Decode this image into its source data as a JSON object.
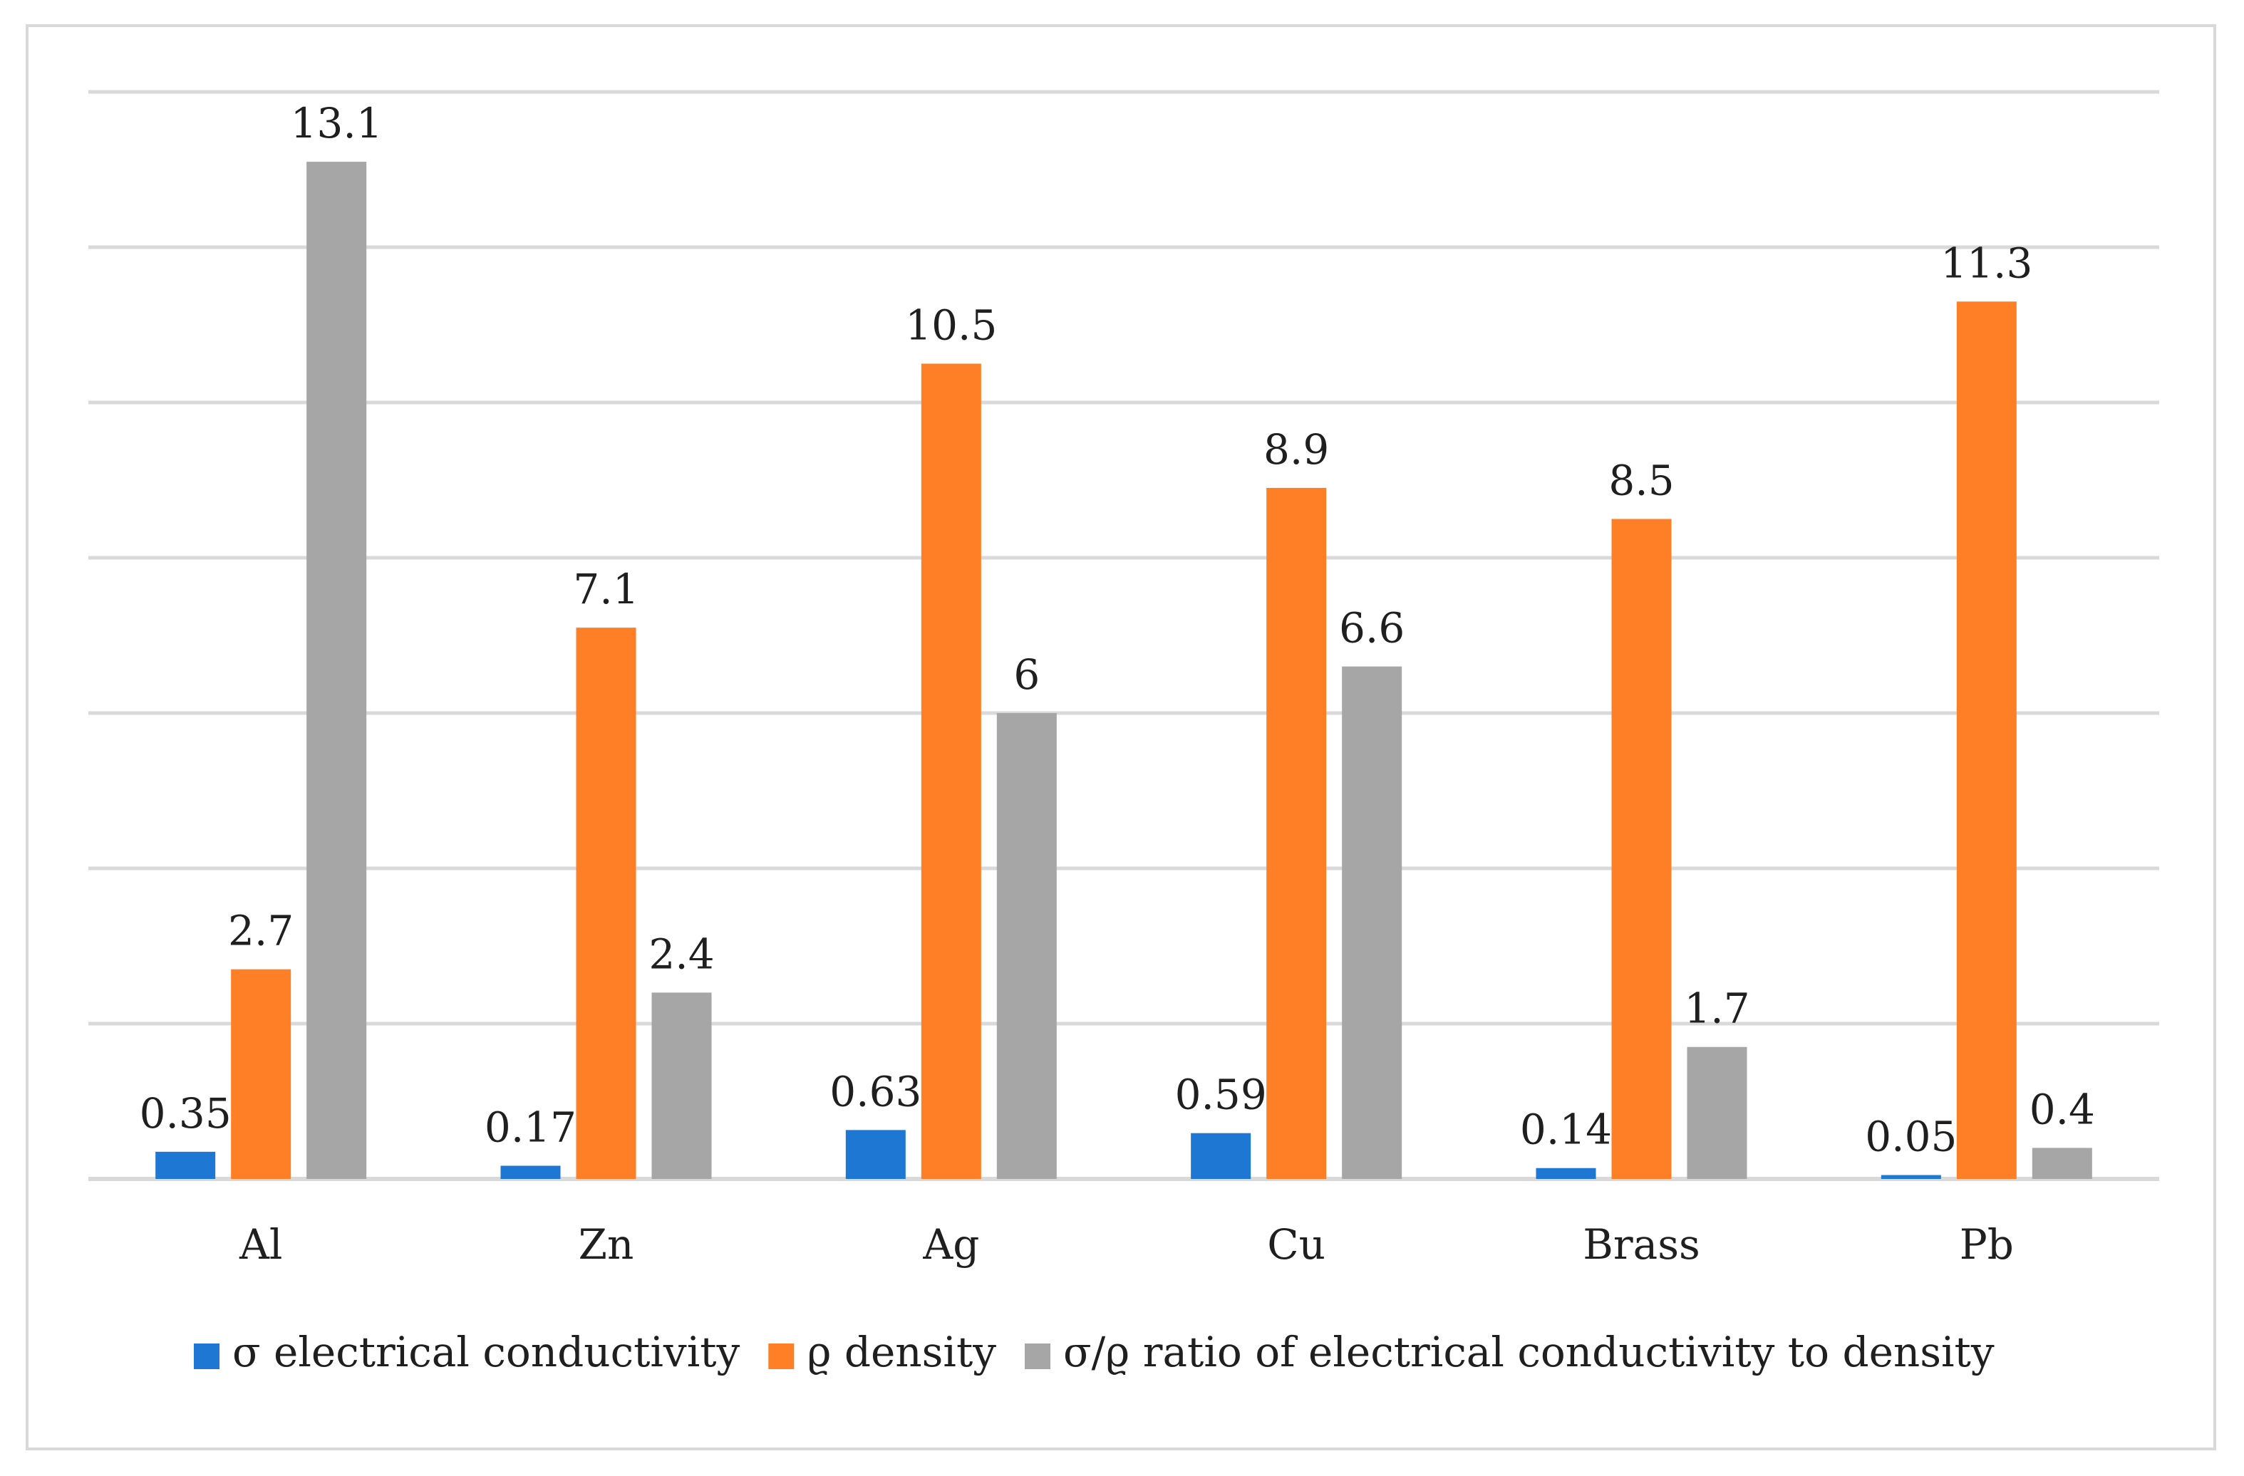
{
  "chart_data": {
    "type": "bar",
    "title": "",
    "xlabel": "",
    "ylabel": "",
    "ylim": [
      0,
      14
    ],
    "grid": true,
    "legend_position": "bottom",
    "categories": [
      "Al",
      "Zn",
      "Ag",
      "Cu",
      "Brass",
      "Pb"
    ],
    "series": [
      {
        "name": "σ electrical conductivity",
        "color": "#1f77d4",
        "values": [
          0.35,
          0.17,
          0.63,
          0.59,
          0.14,
          0.05
        ],
        "labels": [
          "0.35",
          "0.17",
          "0.63",
          "0.59",
          "0.14",
          "0.05"
        ]
      },
      {
        "name": "ϱ density",
        "color": "#ff7f27",
        "values": [
          2.7,
          7.1,
          10.5,
          8.9,
          8.5,
          11.3
        ],
        "labels": [
          "2.7",
          "7.1",
          "10.5",
          "8.9",
          "8.5",
          "11.3"
        ]
      },
      {
        "name": "σ/ϱ ratio of electrical conductivity to density",
        "color": "#a6a6a6",
        "values": [
          13.1,
          2.4,
          6,
          6.6,
          1.7,
          0.4
        ],
        "labels": [
          "13.1",
          "2.4",
          "6",
          "6.6",
          "1.7",
          "0.4"
        ]
      }
    ]
  }
}
